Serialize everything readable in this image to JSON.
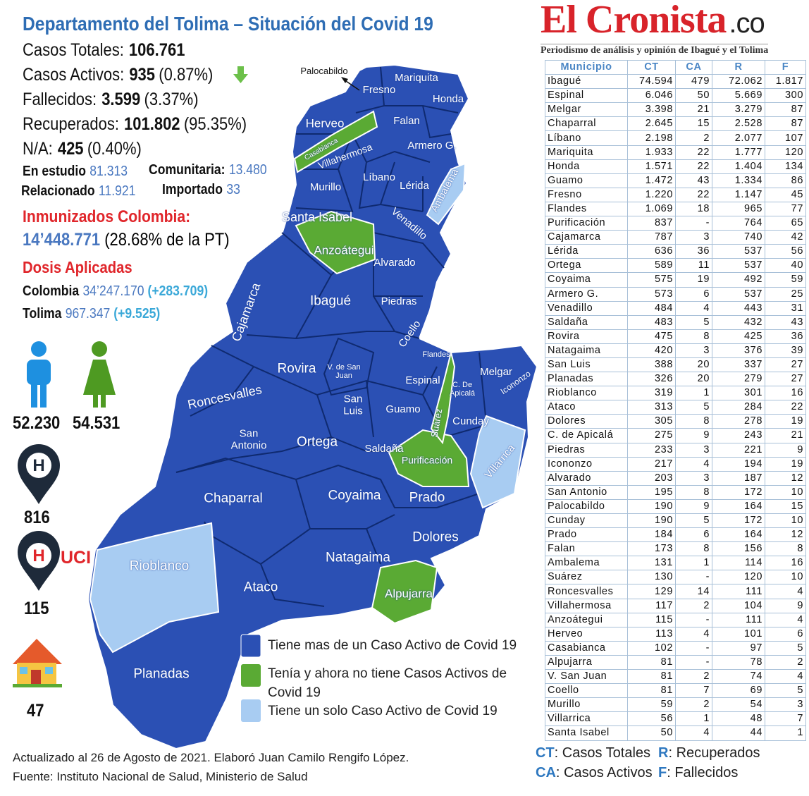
{
  "header": {
    "title": "Departamento del Tolima – Situación del Covid 19"
  },
  "summary": [
    {
      "label": "Casos Totales:",
      "value": "106.761"
    },
    {
      "label": "Casos Activos:",
      "value": "935",
      "pct": "(0.87%)"
    },
    {
      "label": "Fallecidos:",
      "value": "3.599",
      "pct": "(3.37%)"
    },
    {
      "label": "Recuperados:",
      "value": "101.802",
      "pct": "(95.35%)"
    },
    {
      "label": "N/A:",
      "value": "425",
      "pct": "(0.40%)"
    }
  ],
  "origin": [
    {
      "label": "En estudio",
      "value": "81.313"
    },
    {
      "label": "Comunitaria:",
      "value": "13.480"
    },
    {
      "label": "Relacionado",
      "value": "11.921"
    },
    {
      "label": "Importado",
      "value": "33"
    }
  ],
  "immunized": {
    "title": "Inmunizados Colombia:",
    "value": "14’448.771",
    "pct": "(28.68% de la PT)"
  },
  "doses": {
    "title": "Dosis Aplicadas",
    "rows": [
      {
        "place": "Colombia",
        "value": "34’247.170",
        "change": "(+283.709)"
      },
      {
        "place": "Tolima",
        "value": "967.347",
        "change": "(+9.525)"
      }
    ]
  },
  "icons": {
    "men": "52.230",
    "women": "54.531",
    "hospital": "816",
    "uci_label": "UCI",
    "uci": "115",
    "home": "47"
  },
  "map": {
    "labels": [
      "Palocabildo",
      "Mariquita",
      "Fresno",
      "Honda",
      "Herveo",
      "Falan",
      "Casabianca",
      "Villahermosa",
      "Armero G.",
      "Murillo",
      "Líbano",
      "Lérida",
      "Ambalema",
      "Santa Isabel",
      "Venadillo",
      "Anzoátegui",
      "Alvarado",
      "Ibagué",
      "Piedras",
      "Cajamarca",
      "Coello",
      "Rovira",
      "V. de San Juan",
      "Flandes",
      "Espinal",
      "Melgar",
      "C. De Apicalá",
      "Icononzo",
      "Roncesvalles",
      "San Luis",
      "Guamo",
      "Suárez",
      "Cunday",
      "San Antonio",
      "Ortega",
      "Saldaña",
      "Purificación",
      "Villarrica",
      "Chaparral",
      "Coyaima",
      "Prado",
      "Dolores",
      "Rioblanco",
      "Natagaima",
      "Ataco",
      "Alpujarra",
      "Planadas"
    ],
    "legend": [
      "Tiene mas de un Caso Activo de Covid 19",
      "Tenía y ahora no tiene Casos Activos de Covid 19",
      "Tiene un solo Caso Activo de Covid 19"
    ]
  },
  "brand": {
    "name": "El Cronista",
    "domain": ".co",
    "tagline": "Periodismo de análisis y opinión de Ibagué y el Tolima"
  },
  "table": {
    "columns": [
      "Municipio",
      "CT",
      "CA",
      "R",
      "F"
    ],
    "rows": [
      [
        "Ibagué",
        "74.594",
        "479",
        "72.062",
        "1.817"
      ],
      [
        "Espinal",
        "6.046",
        "50",
        "5.669",
        "300"
      ],
      [
        "Melgar",
        "3.398",
        "21",
        "3.279",
        "87"
      ],
      [
        "Chaparral",
        "2.645",
        "15",
        "2.528",
        "87"
      ],
      [
        "Líbano",
        "2.198",
        "2",
        "2.077",
        "107"
      ],
      [
        "Mariquita",
        "1.933",
        "22",
        "1.777",
        "120"
      ],
      [
        "Honda",
        "1.571",
        "22",
        "1.404",
        "134"
      ],
      [
        "Guamo",
        "1.472",
        "43",
        "1.334",
        "86"
      ],
      [
        "Fresno",
        "1.220",
        "22",
        "1.147",
        "45"
      ],
      [
        "Flandes",
        "1.069",
        "18",
        "965",
        "77"
      ],
      [
        "Purificación",
        "837",
        "-",
        "764",
        "65"
      ],
      [
        "Cajamarca",
        "787",
        "3",
        "740",
        "42"
      ],
      [
        "Lérida",
        "636",
        "36",
        "537",
        "56"
      ],
      [
        "Ortega",
        "589",
        "11",
        "537",
        "40"
      ],
      [
        "Coyaima",
        "575",
        "19",
        "492",
        "59"
      ],
      [
        "Armero G.",
        "573",
        "6",
        "537",
        "25"
      ],
      [
        "Venadillo",
        "484",
        "4",
        "443",
        "31"
      ],
      [
        "Saldaña",
        "483",
        "5",
        "432",
        "43"
      ],
      [
        "Rovira",
        "475",
        "8",
        "425",
        "36"
      ],
      [
        "Natagaima",
        "420",
        "3",
        "376",
        "39"
      ],
      [
        "San Luis",
        "388",
        "20",
        "337",
        "27"
      ],
      [
        "Planadas",
        "326",
        "20",
        "279",
        "27"
      ],
      [
        "Rioblanco",
        "319",
        "1",
        "301",
        "16"
      ],
      [
        "Ataco",
        "313",
        "5",
        "284",
        "22"
      ],
      [
        "Dolores",
        "305",
        "8",
        "278",
        "19"
      ],
      [
        "C. de Apicalá",
        "275",
        "9",
        "243",
        "21"
      ],
      [
        "Piedras",
        "233",
        "3",
        "221",
        "9"
      ],
      [
        "Icononzo",
        "217",
        "4",
        "194",
        "19"
      ],
      [
        "Alvarado",
        "203",
        "3",
        "187",
        "12"
      ],
      [
        "San Antonio",
        "195",
        "8",
        "172",
        "10"
      ],
      [
        "Palocabildo",
        "190",
        "9",
        "164",
        "15"
      ],
      [
        "Cunday",
        "190",
        "5",
        "172",
        "10"
      ],
      [
        "Prado",
        "184",
        "6",
        "164",
        "12"
      ],
      [
        "Falan",
        "173",
        "8",
        "156",
        "8"
      ],
      [
        "Ambalema",
        "131",
        "1",
        "114",
        "16"
      ],
      [
        "Suárez",
        "130",
        "-",
        "120",
        "10"
      ],
      [
        "Roncesvalles",
        "129",
        "14",
        "111",
        "4"
      ],
      [
        "Villahermosa",
        "117",
        "2",
        "104",
        "9"
      ],
      [
        "Anzoátegui",
        "115",
        "-",
        "111",
        "4"
      ],
      [
        "Herveo",
        "113",
        "4",
        "101",
        "6"
      ],
      [
        "Casabianca",
        "102",
        "-",
        "97",
        "5"
      ],
      [
        "Alpujarra",
        "81",
        "-",
        "78",
        "2"
      ],
      [
        "V. San Juan",
        "81",
        "2",
        "74",
        "4"
      ],
      [
        "Coello",
        "81",
        "7",
        "69",
        "5"
      ],
      [
        "Murillo",
        "59",
        "2",
        "54",
        "3"
      ],
      [
        "Villarrica",
        "56",
        "1",
        "48",
        "7"
      ],
      [
        "Santa Isabel",
        "50",
        "4",
        "44",
        "1"
      ]
    ]
  },
  "abbreviations": [
    {
      "key": "CT",
      "text": ": Casos Totales"
    },
    {
      "key": "R",
      "text": ": Recuperados"
    },
    {
      "key": "CA",
      "text": ": Casos Activos"
    },
    {
      "key": "F",
      "text": ": Fallecidos"
    }
  ],
  "footer": [
    "Actualizado al 26 de Agosto de 2021. Elaboró Juan Camilo Rengifo López.",
    "Fuente: Instituto Nacional de Salud, Ministerio de Salud"
  ]
}
